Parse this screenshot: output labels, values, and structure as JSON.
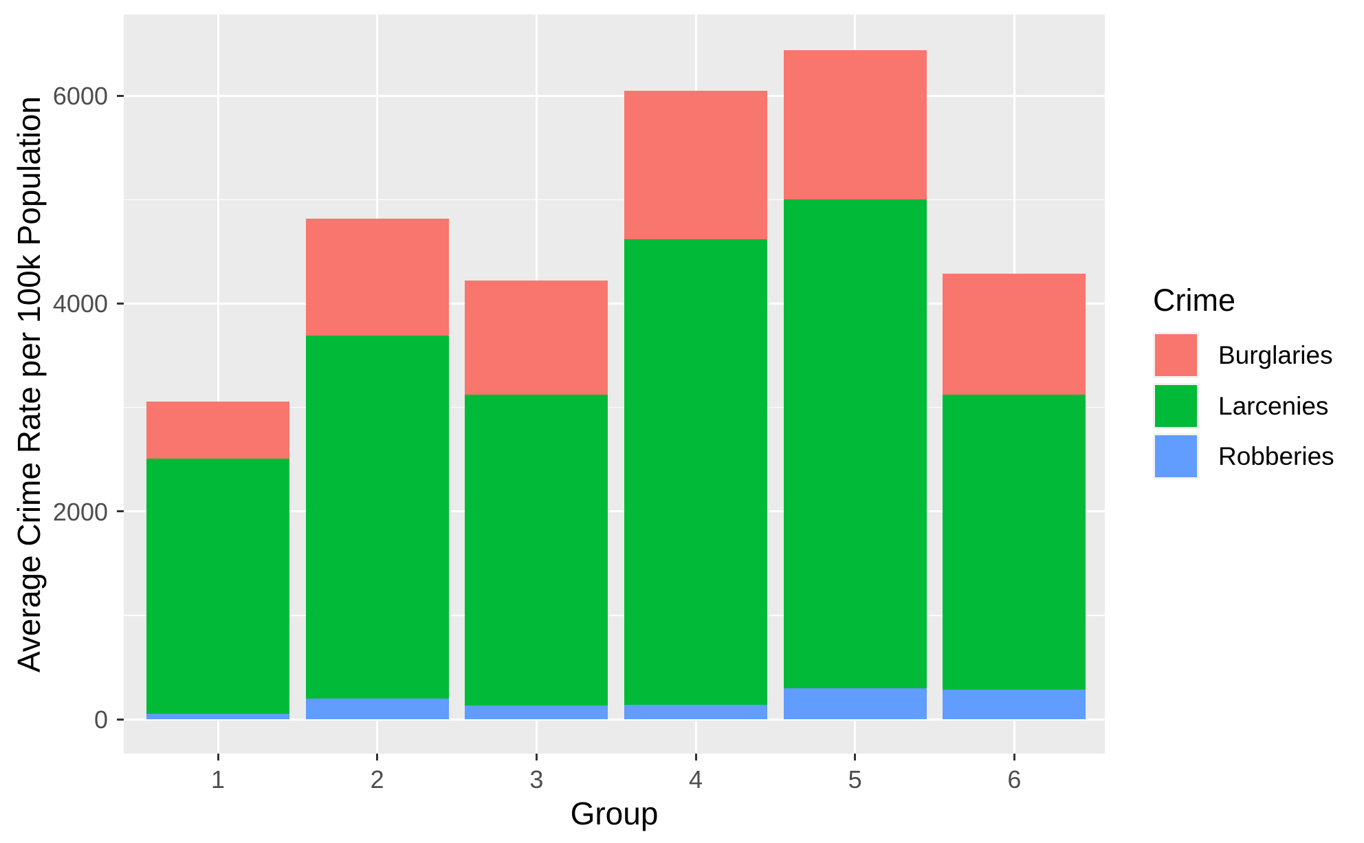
{
  "chart_data": {
    "type": "bar",
    "stacked": true,
    "xlabel": "Group",
    "ylabel": "Average Crime Rate per 100k Population",
    "categories": [
      "1",
      "2",
      "3",
      "4",
      "5",
      "6"
    ],
    "series": [
      {
        "name": "Robberies",
        "color": "#619CFF",
        "values": [
          50,
          200,
          135,
          140,
          300,
          285
        ]
      },
      {
        "name": "Larcenies",
        "color": "#00BA38",
        "values": [
          2455,
          3490,
          2990,
          4480,
          4700,
          2840
        ]
      },
      {
        "name": "Burglaries",
        "color": "#F8766D",
        "values": [
          550,
          1130,
          1095,
          1425,
          1440,
          1160
        ]
      }
    ],
    "stack_totals": [
      3055,
      4820,
      4220,
      6045,
      6440,
      4285
    ],
    "y_major_ticks": [
      0,
      2000,
      4000,
      6000
    ],
    "y_minor_ticks": [
      1000,
      3000,
      5000
    ],
    "ylim": [
      -322,
      6762
    ],
    "grid": true,
    "legend": {
      "title": "Crime",
      "position": "right",
      "entries": [
        "Burglaries",
        "Larcenies",
        "Robberies"
      ]
    }
  },
  "style": {
    "panel_bg": "#EBEBEB",
    "grid_color": "#FFFFFF",
    "tick_mark_color": "#333333",
    "tick_label_color": "#4D4D4D",
    "axis_title_color": "#000000",
    "legend_key_bg": "#F2F2F2"
  }
}
